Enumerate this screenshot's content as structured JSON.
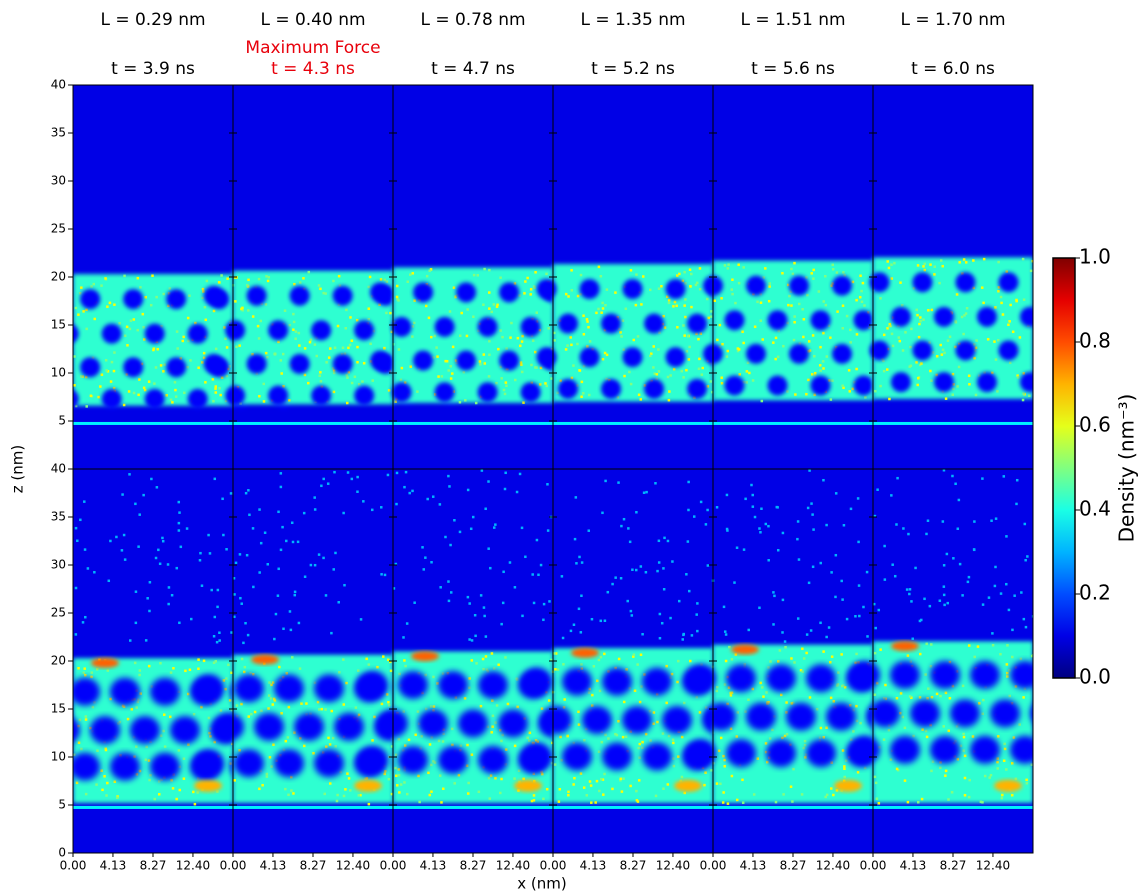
{
  "chart_data": {
    "type": "heatmap",
    "panels": [
      {
        "L": "L = 0.29 nm",
        "t": "t = 3.9 ns"
      },
      {
        "L": "L = 0.40 nm",
        "t": "t = 4.3 ns",
        "annotation": "Maximum Force",
        "color": "#e8000b"
      },
      {
        "L": "L = 0.78 nm",
        "t": "t = 4.7 ns"
      },
      {
        "L": "L = 1.35 nm",
        "t": "t = 5.2 ns"
      },
      {
        "L": "L = 1.51 nm",
        "t": "t = 5.6 ns"
      },
      {
        "L": "L = 1.70 nm",
        "t": "t = 6.0 ns"
      }
    ],
    "rows": 2,
    "xlabel": "x (nm)",
    "ylabel": "z (nm)",
    "xlim": [
      0,
      16.54
    ],
    "xticks": [
      {
        "value": 0,
        "label": "0.00"
      },
      {
        "value": 4.13,
        "label": "4.13"
      },
      {
        "value": 8.27,
        "label": "8.27"
      },
      {
        "value": 12.4,
        "label": "12.40"
      }
    ],
    "ylim": [
      0,
      40
    ],
    "yticks": [
      0,
      5,
      10,
      15,
      20,
      25,
      30,
      35,
      40
    ],
    "colormap": "jet",
    "clim": [
      0,
      1
    ],
    "cticks": [
      {
        "value": 0,
        "label": "0.0"
      },
      {
        "value": 0.2,
        "label": "0.2"
      },
      {
        "value": 0.4,
        "label": "0.4"
      },
      {
        "value": 0.6,
        "label": "0.6"
      },
      {
        "value": 0.8,
        "label": "0.8"
      },
      {
        "value": 1,
        "label": "1.0"
      }
    ],
    "clabel": "Density (nm⁻³)"
  }
}
